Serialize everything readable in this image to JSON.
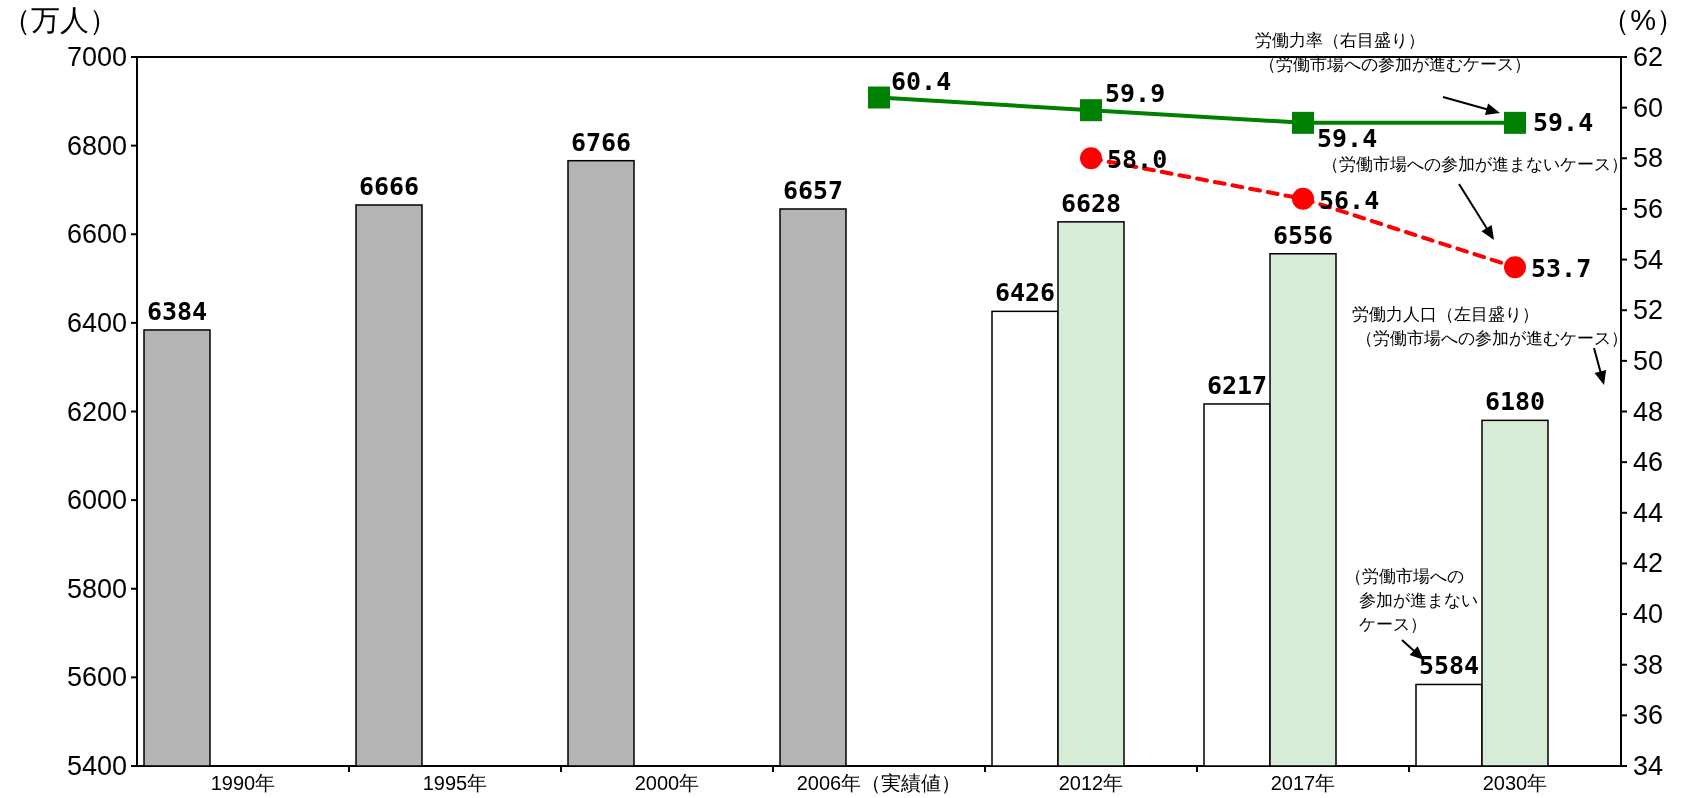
{
  "chart_data": {
    "type": "bar",
    "ylabel": "（万人）",
    "y2label": "（%）",
    "categories": [
      "1990年",
      "1995年",
      "2000年",
      "2006年（実績値）",
      "2012年",
      "2017年",
      "2030年"
    ],
    "series": [
      {
        "color": "#b4b4b4",
        "values": [
          6384,
          6666,
          6766,
          6657,
          null,
          null,
          null
        ]
      },
      {
        "color": "#ffffff",
        "values": [
          null,
          null,
          null,
          null,
          6426,
          6217,
          5584
        ]
      },
      {
        "color": "#d6ecd6",
        "values": [
          null,
          null,
          null,
          null,
          6628,
          6556,
          6180
        ]
      },
      {
        "type": "line",
        "axis": "y2",
        "color": "#008000",
        "marker": "square",
        "line_style": "solid",
        "values": [
          null,
          null,
          null,
          60.4,
          59.9,
          59.4,
          59.4
        ]
      },
      {
        "type": "line",
        "axis": "y2",
        "color": "#ff0000",
        "marker": "circle",
        "line_style": "dashed",
        "values": [
          null,
          null,
          null,
          null,
          58.0,
          56.4,
          53.7
        ],
        "value_labels": [
          null,
          null,
          null,
          null,
          "58.0",
          "56.4",
          "53.7"
        ]
      }
    ],
    "data_labels": true,
    "ylim": [
      5400,
      7000
    ],
    "yticks": [
      5400,
      5600,
      5800,
      6000,
      6200,
      6400,
      6600,
      6800,
      7000
    ],
    "y2lim": [
      34,
      62
    ],
    "y2ticks": [
      34,
      36,
      38,
      40,
      42,
      44,
      46,
      48,
      50,
      52,
      54,
      56,
      58,
      60,
      62
    ],
    "grid": false,
    "annotations": [
      "労働力率（右目盛り）（労働市場への参加が進むケース）",
      "（労働市場への参加が進まないケース）",
      "労働力人口（左目盛り）（労働市場への参加が進むケース）",
      "（労働市場への参加が進まないケース）"
    ]
  }
}
